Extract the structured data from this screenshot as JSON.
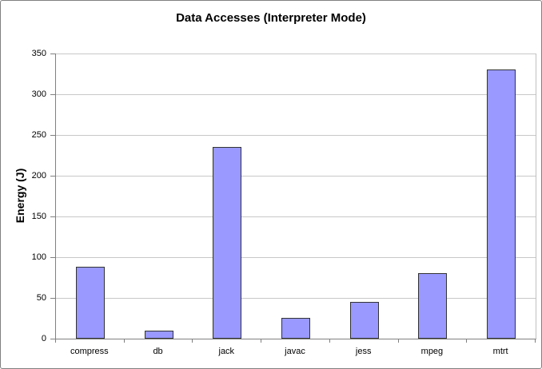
{
  "chart_data": {
    "type": "bar",
    "title": "Data Accesses (Interpreter Mode)",
    "xlabel": "",
    "ylabel": "Energy (J)",
    "categories": [
      "compress",
      "db",
      "jack",
      "javac",
      "jess",
      "mpeg",
      "mtrt"
    ],
    "values": [
      88,
      10,
      235,
      25,
      45,
      80,
      330
    ],
    "ylim": [
      0,
      350
    ],
    "yticks": [
      0,
      50,
      100,
      150,
      200,
      250,
      300,
      350
    ],
    "grid": true,
    "legend": false,
    "colors": {
      "bar_fill": "#9999FF",
      "bar_border": "#333333",
      "gridline": "#C8C8C8",
      "axis": "#808080",
      "text": "#000000",
      "background": "#FFFFFF",
      "outer_border": "#808080"
    }
  }
}
